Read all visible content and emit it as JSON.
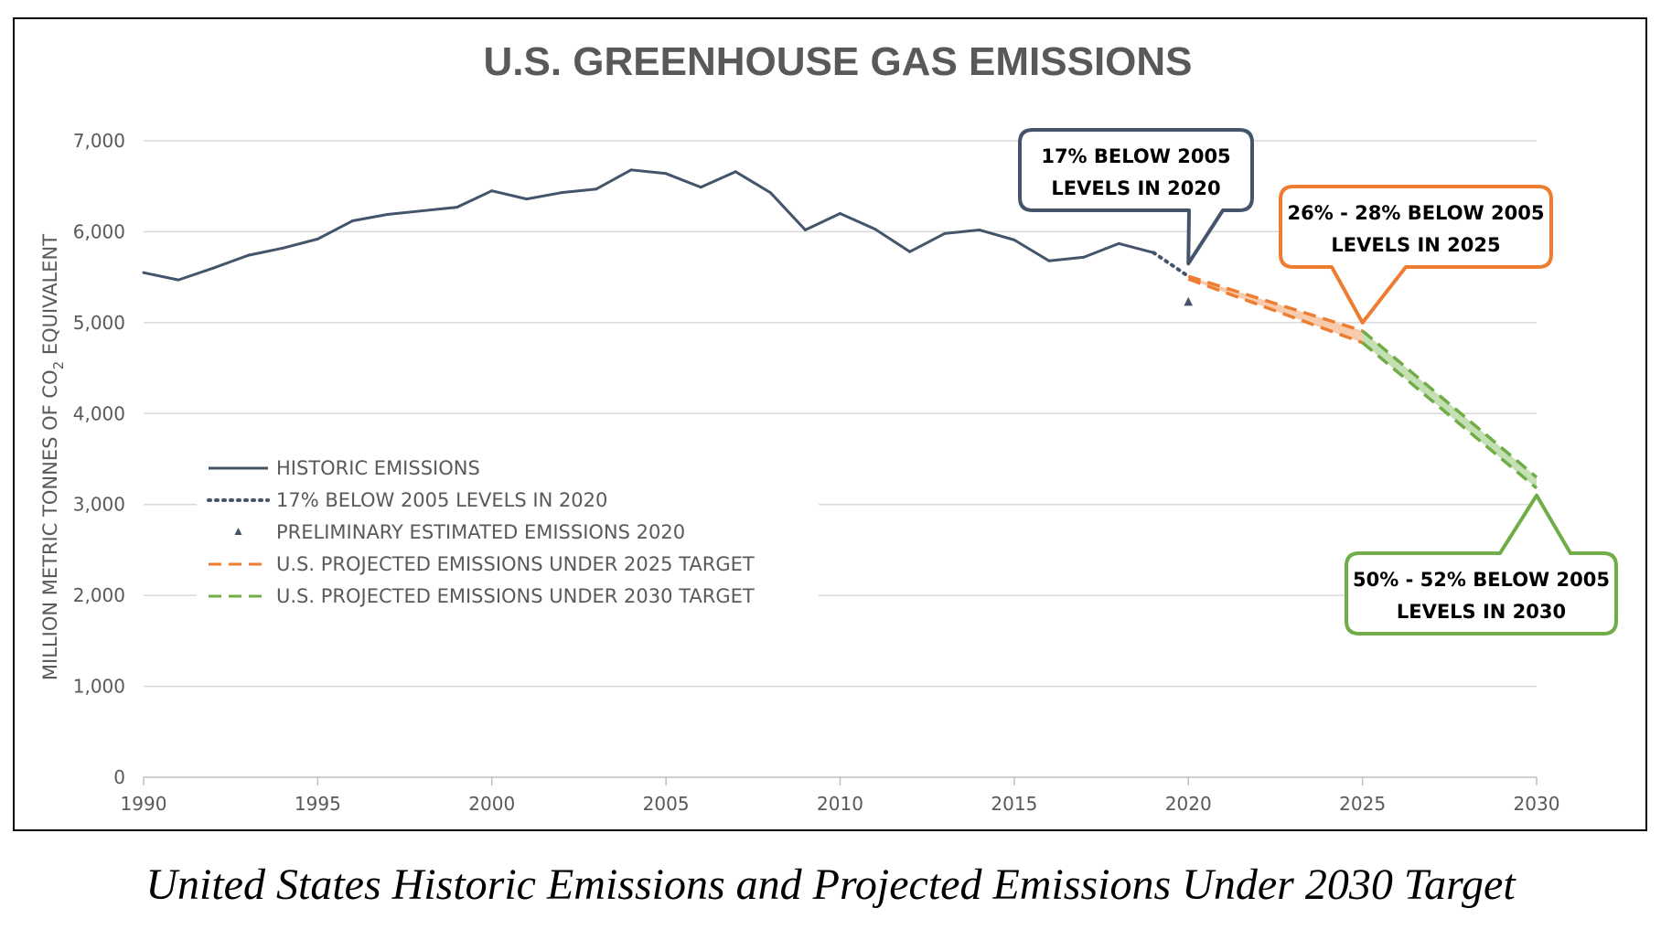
{
  "chart_data": {
    "type": "line",
    "title": "U.S. GREENHOUSE GAS EMISSIONS",
    "ylabel": "MILLION METRIC TONNES OF CO",
    "ylabel_sub": "2",
    "ylabel_tail": " EQUIVALENT",
    "xlabel": "",
    "xlim": [
      1990,
      2030
    ],
    "ylim": [
      0,
      7000
    ],
    "x_ticks": [
      "1990",
      "1995",
      "2000",
      "2005",
      "2010",
      "2015",
      "2020",
      "2025",
      "2030"
    ],
    "y_ticks": [
      "0",
      "1,000",
      "2,000",
      "3,000",
      "4,000",
      "5,000",
      "6,000",
      "7,000"
    ],
    "grid": true,
    "legend_position": "left-middle",
    "series": [
      {
        "name": "HISTORIC EMISSIONS",
        "style": "solid",
        "color": "#44546a",
        "x": [
          1990,
          1991,
          1992,
          1993,
          1994,
          1995,
          1996,
          1997,
          1998,
          1999,
          2000,
          2001,
          2002,
          2003,
          2004,
          2005,
          2006,
          2007,
          2008,
          2009,
          2010,
          2011,
          2012,
          2013,
          2014,
          2015,
          2016,
          2017,
          2018,
          2019
        ],
        "y": [
          5550,
          5470,
          5600,
          5740,
          5820,
          5920,
          6120,
          6190,
          6230,
          6270,
          6450,
          6360,
          6430,
          6470,
          6680,
          6640,
          6490,
          6660,
          6430,
          6020,
          6200,
          6030,
          5780,
          5980,
          6020,
          5910,
          5680,
          5720,
          5870,
          5770
        ]
      },
      {
        "name": "17% BELOW 2005 LEVELS IN 2020",
        "style": "dotted",
        "color": "#44546a",
        "x": [
          2019,
          2020
        ],
        "y": [
          5770,
          5510
        ]
      },
      {
        "name": "PRELIMINARY ESTIMATED EMISSIONS 2020",
        "style": "marker",
        "color": "#44546a",
        "x": [
          2020
        ],
        "y": [
          5222
        ]
      },
      {
        "name": "U.S. PROJECTED EMISSIONS UNDER 2025 TARGET",
        "style": "dashed",
        "color": "#ed7d31",
        "band_color": "#f8cbad",
        "x": [
          2020,
          2025
        ],
        "y_upper": [
          5510,
          4910
        ],
        "y_lower": [
          5480,
          4780
        ]
      },
      {
        "name": "U.S. PROJECTED EMISSIONS UNDER 2030 TARGET",
        "style": "dashed",
        "color": "#70ad47",
        "band_color": "#c5e0b4",
        "x": [
          2025,
          2030
        ],
        "y_upper": [
          4910,
          3300
        ],
        "y_lower": [
          4780,
          3180
        ]
      }
    ],
    "annotations": [
      {
        "lines": [
          "17% BELOW 2005",
          "LEVELS IN 2020"
        ],
        "color": "#44546a",
        "x": 2020,
        "y": 5650
      },
      {
        "lines": [
          "26% - 28% BELOW 2005",
          "LEVELS IN 2025"
        ],
        "color": "#ed7d31",
        "x": 2025,
        "y": 5000
      },
      {
        "lines": [
          "50% - 52% BELOW 2005",
          "LEVELS IN 2030"
        ],
        "color": "#70ad47",
        "x": 2030,
        "y": 3100
      }
    ]
  },
  "caption": "United States Historic Emissions and Projected Emissions Under 2030 Target"
}
